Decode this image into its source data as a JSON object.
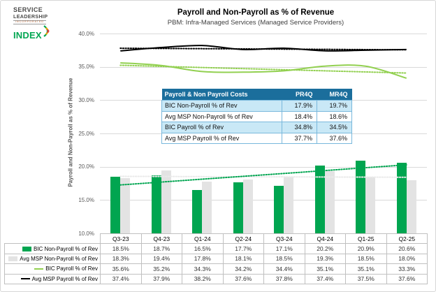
{
  "logo": {
    "line1": "SERVICE",
    "line2": "LEADERSHIP",
    "line3": "INCORPORATED",
    "line4": "INDEX"
  },
  "header": {
    "title": "Payroll and Non-Payroll as % of Revenue",
    "subtitle": "PBM: Infra-Managed Services (Managed Service Providers)"
  },
  "chart_data": {
    "type": "bar",
    "subtype": "combo bar+line with dotted linear trendlines",
    "title": "Payroll and Non-Payroll as % of Revenue",
    "subtitle": "PBM: Infra-Managed Services (Managed Service Providers)",
    "ylabel": "Payroll and Non-Payroll as % of Revenue",
    "ylim": [
      10,
      40
    ],
    "ytick_values": [
      40,
      35,
      30,
      25,
      20,
      15,
      10
    ],
    "ytick_labels": [
      "40.0%",
      "35.0%",
      "30.0%",
      "25.0%",
      "20.0%",
      "15.0%",
      "10.0%"
    ],
    "grid": true,
    "legend_position": "bottom-table",
    "categories": [
      "Q3-23",
      "Q4-23",
      "Q1-24",
      "Q2-24",
      "Q3-24",
      "Q4-24",
      "Q1-25",
      "Q2-25"
    ],
    "series": [
      {
        "name": "BIC Non-Payroll % of Rev",
        "type": "bar",
        "color": "#00A550",
        "values": [
          18.5,
          18.7,
          16.5,
          17.7,
          17.1,
          20.2,
          20.9,
          20.6
        ],
        "trendline": true,
        "trend_color": "#00A550"
      },
      {
        "name": "Avg MSP Non-Payroll % of Rev",
        "type": "bar",
        "color": "#E3E3E3",
        "values": [
          18.3,
          19.4,
          17.8,
          18.1,
          18.5,
          19.3,
          18.5,
          18.0
        ],
        "trendline": true,
        "trend_color": "#EAEAEA"
      },
      {
        "name": "BIC Payroll % of Rev",
        "type": "line",
        "color": "#92D050",
        "values": [
          35.6,
          35.2,
          34.3,
          34.2,
          34.4,
          35.1,
          35.1,
          33.3
        ],
        "trendline": true,
        "trend_color": "#92D050"
      },
      {
        "name": "Avg MSP Payroll % of Rev",
        "type": "line",
        "color": "#000000",
        "values": [
          37.4,
          37.9,
          38.2,
          37.6,
          37.8,
          37.4,
          37.5,
          37.6
        ],
        "trendline": true,
        "trend_color": "#000000"
      }
    ]
  },
  "inner_table": {
    "header": [
      "Payroll & Non Payroll Costs",
      "PR4Q",
      "MR4Q"
    ],
    "rows": [
      {
        "label": "BIC Non-Payroll % of Rev",
        "pr4q": "17.9%",
        "mr4q": "19.7%"
      },
      {
        "label": "Avg MSP Non-Payroll % of Rev",
        "pr4q": "18.4%",
        "mr4q": "18.6%"
      },
      {
        "label": "BIC Payroll % of Rev",
        "pr4q": "34.8%",
        "mr4q": "34.5%"
      },
      {
        "label": "Avg MSP Payroll % of Rev",
        "pr4q": "37.7%",
        "mr4q": "37.6%"
      }
    ],
    "colors": {
      "header_bg": "#1B6E9C",
      "header_text": "#FFFFFF",
      "alt_row_bg": "#C9E8F6",
      "border": "#79B8DC"
    }
  },
  "colors": {
    "bic_green": "#00A550",
    "msp_gray": "#E3E3E3",
    "bic_payroll_line": "#92D050",
    "msp_payroll_line": "#000000",
    "gridline": "#D9D9D9",
    "axis_text": "#595959",
    "logo_green": "#00A651",
    "logo_yellow": "#F5A800",
    "logo_red": "#E03A3E"
  }
}
